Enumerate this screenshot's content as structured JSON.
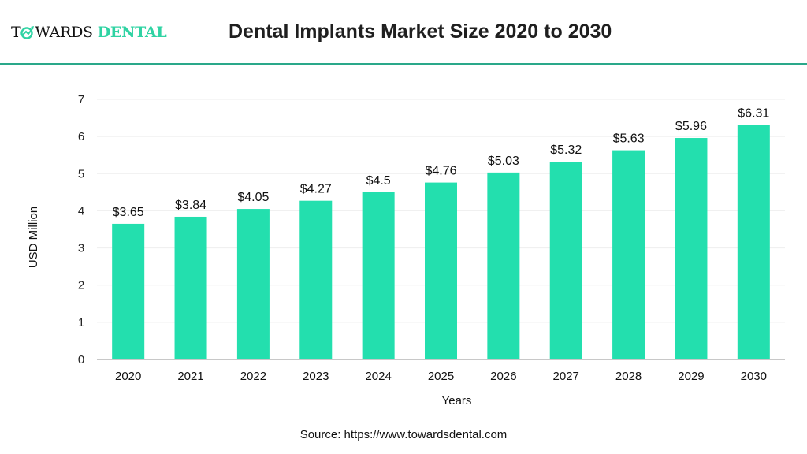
{
  "header": {
    "logo_prefix_left": "T",
    "logo_prefix_right": "WARDS",
    "logo_suffix": "DENTAL",
    "title": "Dental Implants Market Size 2020 to 2030"
  },
  "colors": {
    "bar": "#23dfae",
    "rule": "#2aa88a",
    "brand": "#2fd3a3"
  },
  "source": "Source: https://www.towardsdental.com",
  "chart_data": {
    "type": "bar",
    "title": "Dental Implants Market Size 2020 to 2030",
    "xlabel": "Years",
    "ylabel": "USD Million",
    "categories": [
      "2020",
      "2021",
      "2022",
      "2023",
      "2024",
      "2025",
      "2026",
      "2027",
      "2028",
      "2029",
      "2030"
    ],
    "values": [
      3.65,
      3.84,
      4.05,
      4.27,
      4.5,
      4.76,
      5.03,
      5.32,
      5.63,
      5.96,
      6.31
    ],
    "data_labels": [
      "$3.65",
      "$3.84",
      "$4.05",
      "$4.27",
      "$4.5",
      "$4.76",
      "$5.03",
      "$5.32",
      "$5.63",
      "$5.96",
      "$6.31"
    ],
    "yticks": [
      0,
      1,
      2,
      3,
      4,
      5,
      6,
      7
    ],
    "ylim": [
      0,
      7
    ],
    "grid": true,
    "legend": "none"
  }
}
